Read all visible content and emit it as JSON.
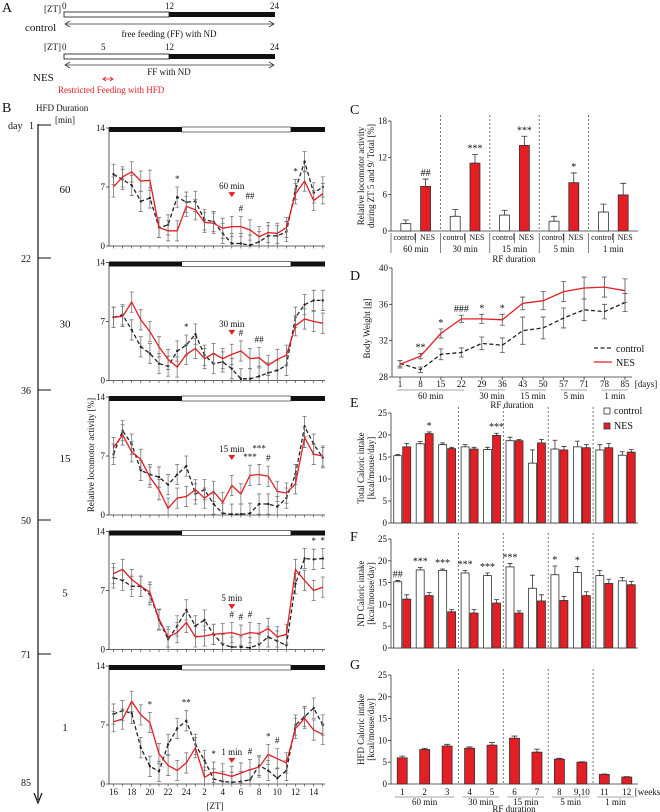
{
  "colors": {
    "nes": "#e31e24",
    "control": "#222222",
    "light": "#ffffff",
    "dark": "#111111"
  },
  "panel_a": {
    "letter": "A",
    "zt": "[ZT]",
    "ticks_control": [
      "0",
      "12",
      "24"
    ],
    "ticks_nes": [
      "0",
      "5",
      "12",
      "24"
    ],
    "control_label": "control",
    "control_arrow": "free feeding (FF) with ND",
    "nes_label": "NES",
    "nes_arrow": "FF with ND",
    "rf_label": "Restricted Feeding with HFD"
  },
  "panel_b": {
    "letter": "B",
    "hfd_title": "HFD Duration",
    "min_unit": "[min]",
    "day_prefix": "day",
    "days": [
      "1",
      "22",
      "36",
      "50",
      "71",
      "85"
    ],
    "ylabel": "Relative locomotor activity [%]",
    "xlabel": "[ZT]"
  },
  "chart_data": [
    {
      "id": "B",
      "type": "line",
      "ylim": [
        0,
        14
      ],
      "yticks": [
        "0",
        "7",
        "14"
      ],
      "x": [
        16,
        17,
        18,
        19,
        20,
        21,
        22,
        23,
        24,
        1,
        2,
        3,
        4,
        5,
        6,
        7,
        8,
        9,
        10,
        11,
        12,
        13,
        14,
        15
      ],
      "xtick_labels": [
        "16",
        "18",
        "20",
        "22",
        "24",
        "2",
        "4",
        "6",
        "8",
        "10",
        "12",
        "14"
      ],
      "light_phase_zt": [
        0,
        12
      ],
      "error_approx": 1.2,
      "panels": [
        {
          "duration": "60",
          "marker": "60 min",
          "control": [
            8.5,
            7.9,
            7.2,
            5.3,
            5.7,
            2.2,
            2.5,
            5.8,
            5.2,
            5.3,
            3.1,
            2.9,
            1.5,
            0.3,
            0.3,
            0.1,
            0.5,
            1.2,
            1.2,
            1.7,
            6.7,
            10,
            6.3,
            7
          ],
          "nes": [
            7,
            8.2,
            8.8,
            7.7,
            7.8,
            2.2,
            1.8,
            1.8,
            4.7,
            4.3,
            2.8,
            2.7,
            2.1,
            2.3,
            2.3,
            1.9,
            1.1,
            1.6,
            1.5,
            2.2,
            6.2,
            7.7,
            5.4,
            6.2
          ],
          "marks": [
            {
              "zt": 23,
              "text": "*"
            },
            {
              "zt": 6,
              "text": "#"
            },
            {
              "zt": 7,
              "text": "##"
            },
            {
              "zt": 12,
              "text": "*"
            }
          ]
        },
        {
          "duration": "30",
          "marker": "30 min",
          "control": [
            7.5,
            7.8,
            6,
            4,
            3.2,
            2,
            1.7,
            3.5,
            4.2,
            5.5,
            3,
            2,
            2.2,
            1.4,
            0.2,
            0.2,
            0.5,
            0.9,
            1.2,
            1.8,
            7.5,
            9,
            9.5,
            9.5
          ],
          "nes": [
            7.5,
            7.6,
            9.3,
            7.2,
            5.8,
            4,
            2.5,
            1.6,
            3.1,
            3.8,
            2.6,
            3.2,
            2.6,
            3.1,
            3.5,
            2.6,
            2.7,
            1.8,
            2.5,
            3,
            6.5,
            7.3,
            7,
            6.8
          ],
          "marks": [
            {
              "zt": 24,
              "text": "*"
            },
            {
              "zt": 6,
              "text": "#"
            },
            {
              "zt": 8,
              "text": "##"
            }
          ]
        },
        {
          "duration": "15",
          "marker": "15 min",
          "control": [
            7.2,
            10,
            8.4,
            5.3,
            4.8,
            4.5,
            3.6,
            4.8,
            5.8,
            2.5,
            3,
            1.3,
            0.2,
            0.1,
            0.1,
            0.2,
            1.3,
            1.3,
            1,
            2,
            4.8,
            10.5,
            8.4,
            6.8
          ],
          "nes": [
            8,
            9.5,
            7.5,
            6.6,
            4.5,
            3,
            0.8,
            2,
            2.2,
            3,
            2,
            2.8,
            1.5,
            3.5,
            2.5,
            4.7,
            4.8,
            4.6,
            2.8,
            2.6,
            3.7,
            9.2,
            7.2,
            7
          ],
          "marks": [
            {
              "zt": 7,
              "text": "***"
            },
            {
              "zt": 8,
              "text": "***"
            },
            {
              "zt": 9,
              "text": "#"
            }
          ]
        },
        {
          "duration": "5",
          "marker": "5 min",
          "control": [
            8.5,
            8.2,
            7.5,
            7.5,
            6.5,
            3.5,
            1.2,
            2.8,
            4.7,
            2.8,
            3.5,
            1.8,
            0.6,
            0.3,
            0.3,
            0.2,
            0.6,
            1.5,
            1,
            0.5,
            7.8,
            10.8,
            10.7,
            10.8
          ],
          "nes": [
            9,
            9.5,
            8.3,
            7.5,
            6.8,
            3.6,
            1.5,
            2,
            3.2,
            1.5,
            1.6,
            1.8,
            1.9,
            2,
            1.7,
            2,
            1.9,
            2.5,
            1.5,
            1.8,
            9.5,
            8.2,
            7,
            7.4
          ],
          "marks": [
            {
              "zt": 5,
              "text": "#"
            },
            {
              "zt": 6,
              "text": "#"
            },
            {
              "zt": 7,
              "text": "#"
            },
            {
              "zt": 14,
              "text": "*"
            },
            {
              "zt": 15,
              "text": "*"
            }
          ]
        },
        {
          "duration": "1",
          "marker": "1 min",
          "control": [
            8.3,
            8.7,
            8.4,
            4.3,
            2.1,
            1.5,
            4.7,
            6.6,
            7.5,
            4.7,
            2.8,
            0.6,
            0.3,
            0.2,
            0.3,
            0.5,
            2.2,
            1.6,
            0.7,
            1.6,
            7,
            8,
            9,
            7
          ],
          "nes": [
            7.4,
            7.7,
            9.8,
            8.2,
            7.3,
            3.6,
            2.2,
            1.6,
            2.5,
            4.3,
            0.8,
            1.4,
            1.2,
            0.9,
            1.3,
            1.7,
            2,
            3.5,
            3,
            2.5,
            6.6,
            7.8,
            6.4,
            5.9
          ],
          "marks": [
            {
              "zt": 20,
              "text": "*"
            },
            {
              "zt": 24,
              "text": "**"
            },
            {
              "zt": 3,
              "text": "*"
            },
            {
              "zt": 7,
              "text": "#"
            },
            {
              "zt": 9,
              "text": "*"
            },
            {
              "zt": 10,
              "text": "#"
            }
          ]
        }
      ]
    },
    {
      "id": "C",
      "letter": "C",
      "type": "bar",
      "ylabel": [
        "Relative locomotor activity",
        "during ZT 5 and 9/ Total [%]"
      ],
      "xlabel": "RF duration",
      "ylim": [
        0,
        18
      ],
      "yticks": [
        "0",
        "6",
        "12",
        "18"
      ],
      "categories": [
        "60 min",
        "30 min",
        "15 min",
        "5 min",
        "1 min"
      ],
      "bar_labels": [
        "control",
        "NES"
      ],
      "series": [
        {
          "name": "control",
          "values": [
            1.2,
            2.4,
            2.6,
            1.6,
            3.1
          ],
          "errors": [
            0.6,
            1.1,
            0.8,
            0.8,
            1.3
          ]
        },
        {
          "name": "NES",
          "values": [
            7.3,
            11.1,
            14.0,
            7.9,
            5.9
          ],
          "errors": [
            1.2,
            1.4,
            1.5,
            1.6,
            1.9
          ]
        }
      ],
      "annotations": [
        "##",
        "***",
        "***",
        "*",
        ""
      ]
    },
    {
      "id": "D",
      "letter": "D",
      "type": "line",
      "ylabel": "Body Weight [g]",
      "xlabel": "RF duration",
      "x_unit": "[days]",
      "ylim": [
        28,
        40
      ],
      "yticks": [
        "28",
        "32",
        "36",
        "40"
      ],
      "x": [
        "1",
        "8",
        "15",
        "22",
        "29",
        "36",
        "43",
        "50",
        "57",
        "71",
        "78",
        "85"
      ],
      "groups": [
        {
          "label": "60 min",
          "from": 0,
          "to": 3
        },
        {
          "label": "30 min",
          "from": 4,
          "to": 5
        },
        {
          "label": "15 min",
          "from": 6,
          "to": 7
        },
        {
          "label": "5 min",
          "from": 8,
          "to": 9
        },
        {
          "label": "1 min",
          "from": 10,
          "to": 11
        }
      ],
      "series": [
        {
          "name": "control",
          "values": [
            29.5,
            28.8,
            30.5,
            30.7,
            31.7,
            31.5,
            33.1,
            33.4,
            34.5,
            35.4,
            35.2,
            36.2
          ],
          "errors": [
            0.3,
            0.3,
            0.6,
            0.5,
            0.7,
            0.8,
            1.5,
            1.2,
            1.1,
            1.2,
            0.8,
            1.0
          ]
        },
        {
          "name": "NES",
          "values": [
            29.4,
            30.3,
            32.8,
            34.4,
            34.4,
            34.3,
            36.1,
            36.4,
            37.4,
            37.8,
            37.9,
            37.5
          ],
          "errors": [
            0.4,
            0.3,
            0.5,
            0.4,
            0.5,
            0.6,
            0.7,
            1.0,
            1.1,
            1.2,
            1.1,
            1.3
          ]
        }
      ],
      "annotations": [
        "",
        "**",
        "*",
        "###",
        "*",
        "*",
        "",
        "",
        "",
        "",
        "",
        ""
      ],
      "legend": [
        "control",
        "NES"
      ]
    },
    {
      "id": "E",
      "letter": "E",
      "type": "bar",
      "ylabel": [
        "Total Caloric intake",
        "[kcal/mouse/day]"
      ],
      "ylim": [
        0,
        25
      ],
      "yticks": [
        "0",
        "5",
        "10",
        "15",
        "20",
        "25"
      ],
      "categories": [
        "1",
        "2",
        "3",
        "4",
        "5",
        "6",
        "7",
        "8",
        "9,10",
        "11",
        "12"
      ],
      "series": [
        {
          "name": "control",
          "values": [
            15.3,
            18.0,
            17.8,
            17.3,
            16.7,
            18.7,
            13.6,
            16.8,
            17.3,
            16.6,
            15.4
          ],
          "errors": [
            0.3,
            0.5,
            0.4,
            0.5,
            0.5,
            0.8,
            3.0,
            2.0,
            1.3,
            1.2,
            0.8
          ]
        },
        {
          "name": "NES",
          "values": [
            17.3,
            20.3,
            16.9,
            16.8,
            19.9,
            18.7,
            18.2,
            16.6,
            17.1,
            17.1,
            16.1
          ],
          "errors": [
            0.8,
            0.4,
            0.3,
            0.4,
            0.5,
            0.3,
            0.8,
            0.8,
            0.7,
            1.0,
            0.6
          ]
        }
      ],
      "annotations": [
        "",
        "*",
        "",
        "",
        "***",
        "",
        "",
        "",
        "",
        "",
        ""
      ],
      "legend": [
        "control",
        "NES"
      ]
    },
    {
      "id": "F",
      "letter": "F",
      "type": "bar",
      "ylabel": [
        "ND Caloric intake",
        "[kcal/mouse/day]"
      ],
      "ylim": [
        0,
        25
      ],
      "yticks": [
        "0",
        "5",
        "10",
        "15",
        "20",
        "25"
      ],
      "categories": [
        "1",
        "2",
        "3",
        "4",
        "5",
        "6",
        "7",
        "8",
        "9,10",
        "11",
        "12"
      ],
      "series": [
        {
          "name": "control",
          "values": [
            15.2,
            17.9,
            17.8,
            17.2,
            16.6,
            18.6,
            13.7,
            16.8,
            17.3,
            16.6,
            15.4
          ],
          "errors": [
            0.3,
            0.6,
            0.3,
            0.6,
            0.6,
            0.8,
            3.0,
            2.0,
            1.4,
            1.2,
            0.8
          ]
        },
        {
          "name": "NES",
          "values": [
            11.2,
            12.0,
            8.3,
            8.0,
            10.3,
            8.0,
            10.8,
            10.9,
            12.0,
            14.8,
            14.5
          ],
          "errors": [
            1.0,
            0.7,
            0.5,
            0.8,
            0.8,
            0.5,
            1.4,
            0.9,
            0.9,
            1.0,
            0.8
          ]
        }
      ],
      "annotations": [
        "##",
        "***",
        "***",
        "***",
        "***",
        "***",
        "",
        "*",
        "*",
        "",
        ""
      ]
    },
    {
      "id": "G",
      "letter": "G",
      "type": "bar",
      "ylabel": [
        "HFD Caloric intake",
        "[kcal/mouse/day]"
      ],
      "xlabel": "RF duration",
      "x_unit": "[weeks]",
      "ylim": [
        0,
        25
      ],
      "yticks": [
        "0",
        "5",
        "10",
        "15",
        "20",
        "25"
      ],
      "categories": [
        "1",
        "2",
        "3",
        "4",
        "5",
        "6",
        "7",
        "8",
        "9,10",
        "11",
        "12"
      ],
      "groups": [
        {
          "label": "60 min",
          "from": 0,
          "to": 2
        },
        {
          "label": "30 min",
          "from": 3,
          "to": 4
        },
        {
          "label": "15 min",
          "from": 5,
          "to": 6
        },
        {
          "label": "5 min",
          "from": 7,
          "to": 8
        },
        {
          "label": "1 min",
          "from": 9,
          "to": 10
        }
      ],
      "series": [
        {
          "name": "NES",
          "values": [
            6.0,
            7.9,
            8.7,
            8.2,
            8.9,
            10.5,
            7.3,
            5.7,
            5.0,
            2.2,
            1.6
          ],
          "errors": [
            0.4,
            0.3,
            0.4,
            0.3,
            0.6,
            0.5,
            0.7,
            0.2,
            0.1,
            0.1,
            0.1
          ]
        }
      ]
    }
  ]
}
